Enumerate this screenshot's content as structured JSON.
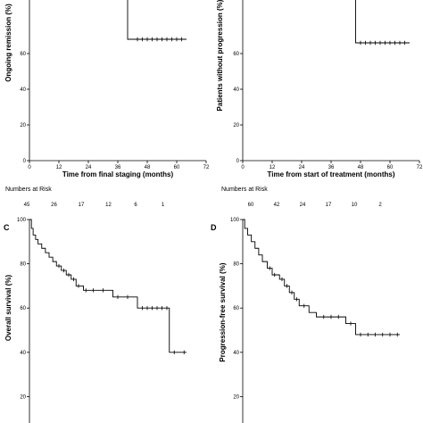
{
  "chart_data": [
    {
      "type": "line",
      "panel_letter": "",
      "xlabel": "Time from final staging (months)",
      "ylabel": "Ongoing remission (%)",
      "xlim": [
        0,
        72
      ],
      "ylim": [
        0,
        100
      ],
      "xticks": [
        "0",
        "12",
        "24",
        "36",
        "48",
        "60",
        "72"
      ],
      "yticks": [
        "0",
        "20",
        "40",
        "60"
      ],
      "series": [
        {
          "steps": [
            [
              0,
              100
            ],
            [
              40,
              100
            ],
            [
              40,
              68
            ],
            [
              64,
              68
            ]
          ],
          "censored": [
            [
              44,
              68
            ],
            [
              46,
              68
            ],
            [
              48,
              68
            ],
            [
              50,
              68
            ],
            [
              52,
              68
            ],
            [
              54,
              68
            ],
            [
              56,
              68
            ],
            [
              58,
              68
            ],
            [
              60,
              68
            ],
            [
              62,
              68
            ]
          ]
        }
      ],
      "risk": {
        "title": "Numbers at Risk",
        "values": [
          "45",
          "26",
          "17",
          "12",
          "6",
          "1"
        ]
      }
    },
    {
      "type": "line",
      "panel_letter": "",
      "xlabel": "Time from start of treatment (months)",
      "ylabel": "Patients without progression (%)",
      "xlim": [
        0,
        72
      ],
      "ylim": [
        0,
        100
      ],
      "xticks": [
        "0",
        "12",
        "24",
        "36",
        "48",
        "60",
        "72"
      ],
      "yticks": [
        "0",
        "20",
        "40",
        "60"
      ],
      "series": [
        {
          "steps": [
            [
              0,
              100
            ],
            [
              46,
              100
            ],
            [
              46,
              66
            ],
            [
              68,
              66
            ]
          ],
          "censored": [
            [
              48,
              66
            ],
            [
              50,
              66
            ],
            [
              52,
              66
            ],
            [
              54,
              66
            ],
            [
              56,
              66
            ],
            [
              58,
              66
            ],
            [
              60,
              66
            ],
            [
              62,
              66
            ],
            [
              64,
              66
            ],
            [
              66,
              66
            ]
          ]
        }
      ],
      "risk": {
        "title": "Numbers at Risk",
        "values": [
          "60",
          "42",
          "24",
          "17",
          "10",
          "2"
        ]
      }
    },
    {
      "type": "line",
      "panel_letter": "C",
      "xlabel": "",
      "ylabel": "Overall survival (%)",
      "xlim": [
        0,
        72
      ],
      "ylim": [
        0,
        100
      ],
      "xticks": [],
      "yticks": [
        "20",
        "40",
        "60",
        "80",
        "100"
      ],
      "series": [
        {
          "steps": [
            [
              0,
              100
            ],
            [
              0.8,
              100
            ],
            [
              0.8,
              96
            ],
            [
              1.5,
              96
            ],
            [
              1.5,
              93
            ],
            [
              2.5,
              93
            ],
            [
              2.5,
              91
            ],
            [
              3.5,
              91
            ],
            [
              3.5,
              89
            ],
            [
              5,
              89
            ],
            [
              5,
              87
            ],
            [
              6.5,
              87
            ],
            [
              6.5,
              85
            ],
            [
              8,
              85
            ],
            [
              8,
              83
            ],
            [
              9.5,
              83
            ],
            [
              9.5,
              81
            ],
            [
              11,
              81
            ],
            [
              11,
              79
            ],
            [
              13,
              79
            ],
            [
              13,
              77
            ],
            [
              15,
              77
            ],
            [
              15,
              75
            ],
            [
              17,
              75
            ],
            [
              17,
              73
            ],
            [
              19,
              73
            ],
            [
              19,
              70
            ],
            [
              22,
              70
            ],
            [
              22,
              68
            ],
            [
              34,
              68
            ],
            [
              34,
              65
            ],
            [
              44,
              65
            ],
            [
              44,
              60
            ],
            [
              57,
              60
            ],
            [
              57,
              40
            ],
            [
              64,
              40
            ]
          ],
          "censored": [
            [
              12,
              79
            ],
            [
              14,
              77
            ],
            [
              16,
              75
            ],
            [
              18,
              73
            ],
            [
              20,
              70
            ],
            [
              23,
              68
            ],
            [
              26,
              68
            ],
            [
              30,
              68
            ],
            [
              36,
              65
            ],
            [
              40,
              65
            ],
            [
              46,
              60
            ],
            [
              48,
              60
            ],
            [
              50,
              60
            ],
            [
              52,
              60
            ],
            [
              54,
              60
            ],
            [
              56,
              60
            ],
            [
              59,
              40
            ],
            [
              63,
              40
            ]
          ]
        }
      ]
    },
    {
      "type": "line",
      "panel_letter": "D",
      "xlabel": "",
      "ylabel": "Progression-free survival (%)",
      "xlim": [
        0,
        72
      ],
      "ylim": [
        0,
        100
      ],
      "xticks": [],
      "yticks": [
        "20",
        "40",
        "60",
        "80",
        "100"
      ],
      "series": [
        {
          "steps": [
            [
              0,
              100
            ],
            [
              0.8,
              100
            ],
            [
              0.8,
              96
            ],
            [
              2,
              96
            ],
            [
              2,
              93
            ],
            [
              3.5,
              93
            ],
            [
              3.5,
              90
            ],
            [
              5,
              90
            ],
            [
              5,
              87
            ],
            [
              6.5,
              87
            ],
            [
              6.5,
              84
            ],
            [
              8,
              84
            ],
            [
              8,
              81
            ],
            [
              10,
              81
            ],
            [
              10,
              78
            ],
            [
              12,
              78
            ],
            [
              12,
              75
            ],
            [
              15,
              75
            ],
            [
              15,
              73
            ],
            [
              17,
              73
            ],
            [
              17,
              70
            ],
            [
              19,
              70
            ],
            [
              19,
              67
            ],
            [
              21,
              67
            ],
            [
              21,
              64
            ],
            [
              23,
              64
            ],
            [
              23,
              61
            ],
            [
              27,
              61
            ],
            [
              27,
              58
            ],
            [
              30,
              58
            ],
            [
              30,
              56
            ],
            [
              42,
              56
            ],
            [
              42,
              53
            ],
            [
              46,
              53
            ],
            [
              46,
              48
            ],
            [
              64,
              48
            ]
          ],
          "censored": [
            [
              11,
              78
            ],
            [
              13,
              75
            ],
            [
              16,
              73
            ],
            [
              18,
              70
            ],
            [
              20,
              67
            ],
            [
              22,
              64
            ],
            [
              25,
              61
            ],
            [
              33,
              56
            ],
            [
              36,
              56
            ],
            [
              39,
              56
            ],
            [
              44,
              53
            ],
            [
              48,
              48
            ],
            [
              51,
              48
            ],
            [
              54,
              48
            ],
            [
              57,
              48
            ],
            [
              60,
              48
            ],
            [
              63,
              48
            ]
          ]
        }
      ]
    }
  ]
}
